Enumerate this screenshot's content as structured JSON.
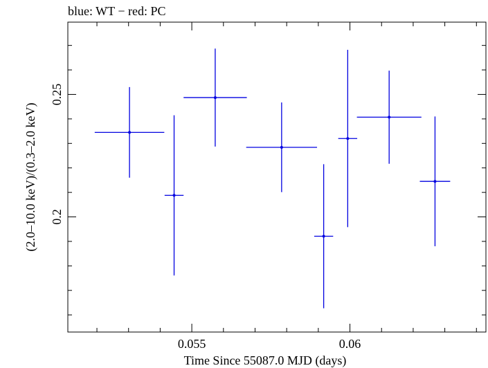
{
  "chart_data": {
    "type": "scatter",
    "title": "blue: WT − red: PC",
    "xlabel": "Time Since 55087.0 MJD (days)",
    "ylabel": "(2.0–10.0 keV)/(0.3–2.0 keV)",
    "xlim": [
      0.05108,
      0.0643
    ],
    "ylim": [
      0.153,
      0.2795
    ],
    "x_ticks": [
      0.055,
      0.06
    ],
    "x_tick_labels": [
      "0.055",
      "0.06"
    ],
    "y_ticks": [
      0.2,
      0.25
    ],
    "y_tick_labels": [
      "0.2",
      "0.25"
    ],
    "grid": false,
    "series": [
      {
        "name": "WT",
        "color": "#0000e0",
        "points": [
          {
            "x": 0.05303,
            "y": 0.2345,
            "xerr": 0.0011,
            "yerr_low": 0.0185,
            "yerr_high": 0.0185
          },
          {
            "x": 0.05444,
            "y": 0.2088,
            "xerr": 0.0003,
            "yerr_low": 0.0327,
            "yerr_high": 0.0327
          },
          {
            "x": 0.05574,
            "y": 0.2487,
            "xerr": 0.001,
            "yerr_low": 0.02,
            "yerr_high": 0.02
          },
          {
            "x": 0.05784,
            "y": 0.2284,
            "xerr": 0.00112,
            "yerr_low": 0.0183,
            "yerr_high": 0.0183
          },
          {
            "x": 0.05917,
            "y": 0.1921,
            "xerr": 0.0003,
            "yerr_low": 0.0294,
            "yerr_high": 0.0294
          },
          {
            "x": 0.05993,
            "y": 0.232,
            "xerr": 0.0003,
            "yerr_low": 0.0362,
            "yerr_high": 0.0362
          },
          {
            "x": 0.06124,
            "y": 0.2407,
            "xerr": 0.00102,
            "yerr_low": 0.019,
            "yerr_high": 0.019
          },
          {
            "x": 0.06269,
            "y": 0.2145,
            "xerr": 0.00048,
            "yerr_low": 0.0265,
            "yerr_high": 0.0265
          }
        ]
      }
    ]
  }
}
